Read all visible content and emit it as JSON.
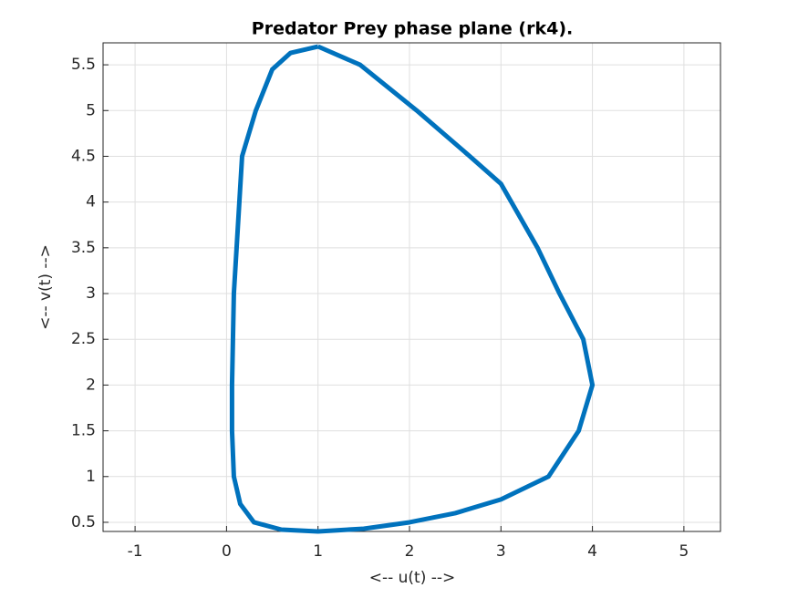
{
  "chart_data": {
    "type": "line",
    "title": "Predator Prey phase plane (rk4).",
    "xlabel": "<-- u(t) -->",
    "ylabel": "<-- v(t) -->",
    "xlim": [
      -1.35,
      5.4
    ],
    "ylim": [
      0.4,
      5.74
    ],
    "xticks": [
      -1,
      0,
      1,
      2,
      3,
      4,
      5
    ],
    "yticks": [
      0.5,
      1,
      1.5,
      2,
      2.5,
      3,
      3.5,
      4,
      4.5,
      5,
      5.5
    ],
    "grid": true,
    "series": [
      {
        "color": "#0072bd",
        "x": [
          1,
          1.46,
          2.08,
          2.66,
          3.0,
          3.4,
          3.64,
          3.9,
          4.0,
          3.85,
          3.52,
          3.0,
          2.5,
          2.0,
          1.5,
          1.0,
          0.6,
          0.3,
          0.15,
          0.08,
          0.06,
          0.06,
          0.07,
          0.08,
          0.11,
          0.14,
          0.17,
          0.32,
          0.5,
          0.7,
          1
        ],
        "values": [
          5.7,
          5.5,
          5.0,
          4.5,
          4.2,
          3.5,
          3.0,
          2.5,
          2.0,
          1.5,
          1.0,
          0.75,
          0.6,
          0.5,
          0.43,
          0.4,
          0.42,
          0.5,
          0.7,
          1.0,
          1.5,
          2.0,
          2.5,
          3.0,
          3.5,
          4.0,
          4.5,
          5.0,
          5.45,
          5.63,
          5.7
        ]
      }
    ]
  }
}
